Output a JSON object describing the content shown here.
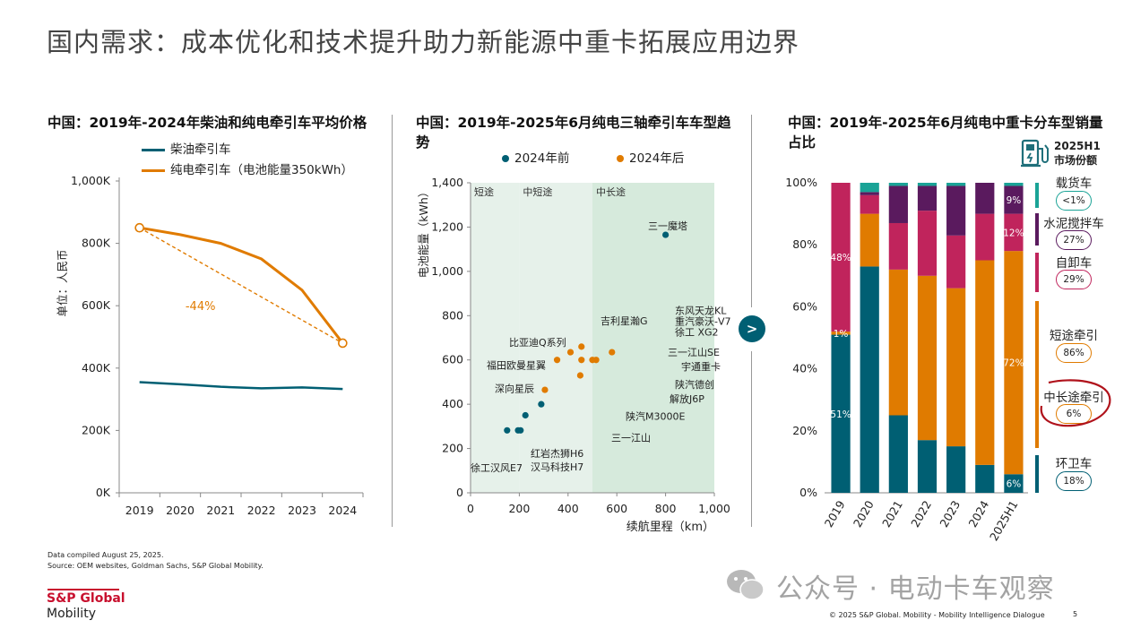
{
  "page": {
    "title": "国内需求：成本优化和技术提升助力新能源中重卡拓展应用边界",
    "footnote_lines": [
      "Data compiled August 25, 2025.",
      "Source: OEM websites, Goldman Sachs, S&P Global Mobility."
    ],
    "brand_line1": "S&P Global",
    "brand_line2": "Mobility",
    "copyright": "© 2025 S&P Global. Mobility - Mobility Intelligence Dialogue",
    "page_number": "5",
    "watermark": "公众号 · 电动卡车观察",
    "arrow_glyph": ">",
    "colors": {
      "teal": "#005f73",
      "orange": "#e07b00",
      "purple": "#5a1a5e",
      "crimson": "#c0245c",
      "light_teal": "#1aa396",
      "zone": "#e6f1ea",
      "zone_dark": "#d6eadc"
    }
  },
  "chart_data": [
    {
      "type": "line",
      "title": "中国：2019年-2024年柴油和纯电牵引车平均价格",
      "ylabel": "单位：人民币",
      "x": [
        "2019",
        "2020",
        "2021",
        "2022",
        "2023",
        "2024"
      ],
      "ylim": [
        0,
        1000
      ],
      "yticks": [
        "0K",
        "200K",
        "400K",
        "600K",
        "800K",
        "1,000K"
      ],
      "series": [
        {
          "name": "柴油牵引车",
          "values": [
            355,
            348,
            340,
            335,
            338,
            333
          ]
        },
        {
          "name": "纯电牵引车（电池能量350kWh）",
          "values": [
            850,
            828,
            800,
            750,
            650,
            480
          ]
        }
      ],
      "annotation": "-44%",
      "legend_position": "top-left"
    },
    {
      "type": "scatter",
      "title": "中国：2019年-2025年6月纯电三轴牵引车车型趋势",
      "xlabel": "续航里程（km）",
      "ylabel": "电池能量（kWh）",
      "xlim": [
        0,
        1000
      ],
      "ylim": [
        0,
        1400
      ],
      "xticks": [
        "0",
        "200",
        "400",
        "600",
        "800",
        "1,000"
      ],
      "yticks": [
        "0",
        "200",
        "400",
        "600",
        "800",
        "1,000",
        "1,200",
        "1,400"
      ],
      "zones": [
        {
          "label": "短途",
          "from": 0,
          "to": 200
        },
        {
          "label": "中短途",
          "from": 200,
          "to": 500
        },
        {
          "label": "中长途",
          "from": 500,
          "to": 1000
        }
      ],
      "series": [
        {
          "name": "2024年前",
          "points": [
            {
              "x": 150,
              "y": 282
            },
            {
              "x": 195,
              "y": 282
            },
            {
              "x": 205,
              "y": 282
            },
            {
              "x": 225,
              "y": 350
            },
            {
              "x": 290,
              "y": 400
            },
            {
              "x": 800,
              "y": 1165
            }
          ]
        },
        {
          "name": "2024年后",
          "points": [
            {
              "x": 305,
              "y": 465
            },
            {
              "x": 355,
              "y": 600
            },
            {
              "x": 410,
              "y": 635
            },
            {
              "x": 455,
              "y": 660
            },
            {
              "x": 455,
              "y": 600
            },
            {
              "x": 450,
              "y": 530
            },
            {
              "x": 500,
              "y": 600
            },
            {
              "x": 515,
              "y": 600
            },
            {
              "x": 580,
              "y": 635
            }
          ]
        }
      ],
      "annotations": [
        "三一魔塔",
        "东风天龙KL",
        "重汽豪沃-V7",
        "徐工 XG2",
        "吉利星瀚G",
        "比亚迪Q系列",
        "三一江山SE",
        "福田欧曼星翼",
        "宇通重卡",
        "陕汽德创",
        "深向星辰",
        "解放J6P",
        "陕汽M3000E",
        "三一江山",
        "红岩杰狮H6",
        "汉马科技H7",
        "徐工汉风E7"
      ]
    },
    {
      "type": "bar",
      "stacked": true,
      "title": "中国：2019年-2025年6月纯电中重卡分车型销量占比",
      "categories": [
        "2019",
        "2020",
        "2021",
        "2022",
        "2023",
        "2024",
        "2025H1"
      ],
      "ylim": [
        0,
        100
      ],
      "yticks": [
        "0%",
        "20%",
        "40%",
        "60%",
        "80%",
        "100%"
      ],
      "series": [
        {
          "name": "环卫车",
          "values": [
            51,
            73,
            25,
            17,
            15,
            9,
            6
          ]
        },
        {
          "name": "中长途牵引",
          "values": [
            0,
            0,
            0,
            0,
            0,
            0,
            0
          ]
        },
        {
          "name": "短途牵引",
          "values": [
            1,
            17,
            47,
            53,
            51,
            66,
            72
          ]
        },
        {
          "name": "自卸车",
          "values": [
            48,
            6,
            15,
            21,
            17,
            15,
            12
          ]
        },
        {
          "name": "水泥搅拌车",
          "values": [
            0,
            1,
            12,
            8,
            16,
            10,
            9
          ]
        },
        {
          "name": "载货车",
          "values": [
            0,
            3,
            1,
            1,
            1,
            0,
            1
          ]
        }
      ],
      "data_labels": [
        {
          "category": "2019",
          "series": "环卫车",
          "text": "51%"
        },
        {
          "category": "2019",
          "series": "短途牵引",
          "text": "1%"
        },
        {
          "category": "2019",
          "series": "自卸车",
          "text": "48%"
        },
        {
          "category": "2025H1",
          "series": "环卫车",
          "text": "6%"
        },
        {
          "category": "2025H1",
          "series": "短途牵引",
          "text": "72%"
        },
        {
          "category": "2025H1",
          "series": "自卸车",
          "text": "12%"
        },
        {
          "category": "2025H1",
          "series": "水泥搅拌车",
          "text": "9%"
        }
      ],
      "market_share": {
        "header_line1": "2025H1",
        "header_line2": "市场份额",
        "items": [
          {
            "label": "载货车",
            "share": "<1%"
          },
          {
            "label": "水泥搅拌车",
            "share": "27%"
          },
          {
            "label": "自卸车",
            "share": "29%"
          },
          {
            "label": "短途牵引",
            "share": "86%"
          },
          {
            "label": "中长途牵引",
            "share": "6%"
          },
          {
            "label": "环卫车",
            "share": "18%"
          }
        ]
      }
    }
  ]
}
